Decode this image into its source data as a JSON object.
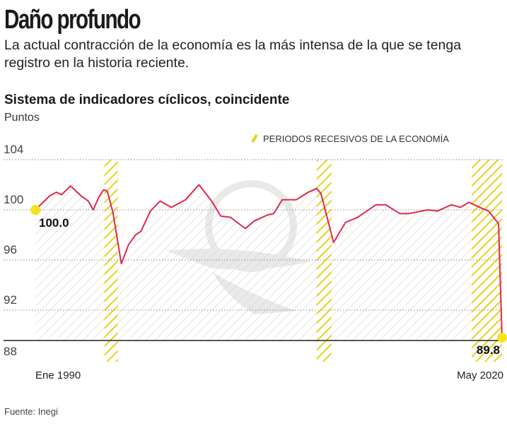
{
  "header": {
    "title": "Daño profundo",
    "subtitle": "La actual contracción de la economía es la más intensa de la que se tenga registro en la historia reciente."
  },
  "footer": {
    "source": "Fuente: Inegi"
  },
  "colors": {
    "line": "#e0284f",
    "recession": "#e6d320",
    "hatch": "#cfcfcf",
    "endpoint": "#f5e21b"
  },
  "chart_data": {
    "type": "line",
    "title": "Sistema de indicadores cíclicos, coincidente",
    "ylabel": "Puntos",
    "xlabel": "",
    "ylim": [
      88,
      104
    ],
    "yticks": [
      104,
      100,
      96,
      92,
      88
    ],
    "xtick_labels": [
      "Ene 1990",
      "May 2020"
    ],
    "xlim": [
      1990.0,
      2020.33
    ],
    "grid": true,
    "legend": {
      "label": "PERIODOS RECESIVOS DE LA ECONOMÍA",
      "placement": "top-right"
    },
    "recessions": [
      [
        1994.49,
        1995.36
      ],
      [
        2008.28,
        2009.24
      ],
      [
        2018.36,
        2020.33
      ]
    ],
    "annotations": [
      {
        "x": 1990.0,
        "y": 100.0,
        "label": "100.0"
      },
      {
        "x": 2020.33,
        "y": 89.8,
        "label": "89.8"
      }
    ],
    "series": [
      {
        "x": [
          1990.0,
          1990.92,
          1991.37,
          1991.7,
          1992.29,
          1992.98,
          1993.44,
          1993.76,
          1994.12,
          1994.44,
          1994.67,
          1995.04,
          1995.59,
          1996.05,
          1996.51,
          1996.87,
          1997.47,
          1998.11,
          1998.84,
          1999.76,
          2000.63,
          2001.46,
          2002.05,
          2002.69,
          2003.65,
          2004.2,
          2005.12,
          2005.49,
          2006.04,
          2006.95,
          2007.73,
          2008.28,
          2008.56,
          2009.38,
          2010.16,
          2010.94,
          2012.13,
          2012.77,
          2013.69,
          2014.28,
          2015.52,
          2016.12,
          2017.03,
          2017.63,
          2018.18,
          2018.87,
          2019.46,
          2020.1,
          2020.33
        ],
        "y": [
          100.0,
          101.1,
          101.4,
          101.2,
          101.9,
          101.1,
          100.7,
          100.0,
          101.0,
          101.6,
          101.5,
          99.8,
          95.7,
          97.2,
          98.0,
          98.3,
          99.9,
          100.7,
          100.2,
          100.8,
          102.0,
          100.7,
          99.5,
          99.4,
          98.5,
          99.1,
          99.6,
          99.7,
          100.8,
          100.8,
          101.4,
          101.7,
          101.3,
          97.4,
          99.0,
          99.4,
          100.4,
          100.4,
          99.7,
          99.7,
          100.0,
          99.9,
          100.4,
          100.2,
          100.6,
          100.2,
          99.9,
          98.9,
          89.8
        ]
      }
    ]
  }
}
